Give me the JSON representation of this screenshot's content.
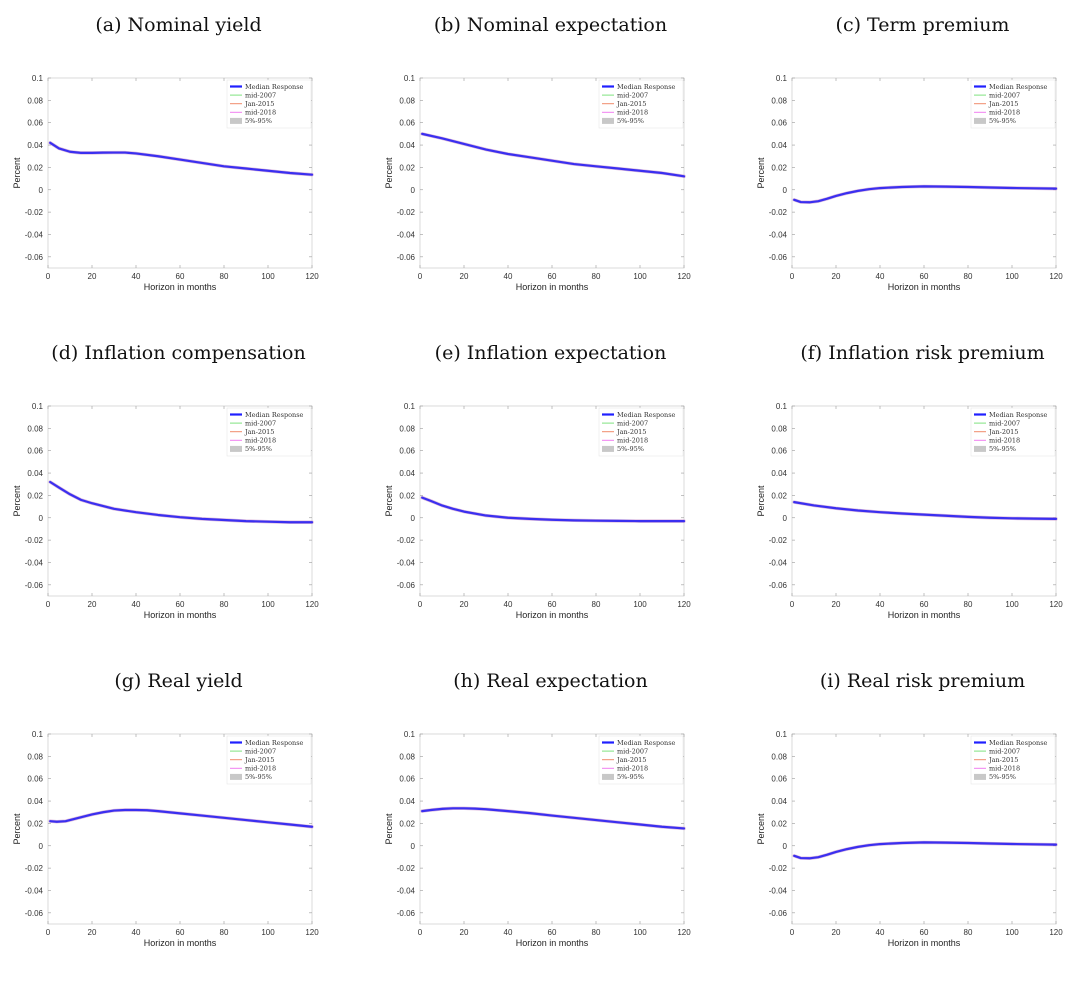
{
  "legend": {
    "entries": [
      {
        "label": "Median Response",
        "color": "#1f1fff",
        "kind": "line-thick"
      },
      {
        "label": "mid-2007",
        "color": "#7fe27f",
        "kind": "line"
      },
      {
        "label": "Jan-2015",
        "color": "#f08a6a",
        "kind": "line"
      },
      {
        "label": "mid-2018",
        "color": "#f07ef0",
        "kind": "line"
      },
      {
        "label": "5%-95%",
        "color": "#c8c8c8",
        "kind": "patch"
      }
    ]
  },
  "chart_data": [
    {
      "type": "line",
      "title": "(a) Nominal yield",
      "xlabel": "Horizon in months",
      "ylabel": "Percent",
      "xlim": [
        0,
        120
      ],
      "ylim": [
        -0.07,
        0.1
      ],
      "xticks": [
        "0",
        "20",
        "40",
        "60",
        "80",
        "100",
        "120"
      ],
      "yticks": [
        "-0.06",
        "-0.04",
        "-0.02",
        "0",
        "0.02",
        "0.04",
        "0.06",
        "0.08",
        "0.1"
      ],
      "series": [
        {
          "name": "Median Response",
          "x": [
            1,
            5,
            10,
            15,
            20,
            25,
            30,
            35,
            40,
            50,
            60,
            70,
            80,
            90,
            100,
            110,
            120
          ],
          "y": [
            0.042,
            0.037,
            0.034,
            0.033,
            0.033,
            0.0332,
            0.0333,
            0.0333,
            0.0325,
            0.03,
            0.027,
            0.024,
            0.021,
            0.019,
            0.017,
            0.015,
            0.0135
          ]
        }
      ]
    },
    {
      "type": "line",
      "title": "(b) Nominal expectation",
      "xlabel": "Horizon in months",
      "ylabel": "Percent",
      "xlim": [
        0,
        120
      ],
      "ylim": [
        -0.07,
        0.1
      ],
      "xticks": [
        "0",
        "20",
        "40",
        "60",
        "80",
        "100",
        "120"
      ],
      "yticks": [
        "-0.06",
        "-0.04",
        "-0.02",
        "0",
        "0.02",
        "0.04",
        "0.06",
        "0.08",
        "0.1"
      ],
      "series": [
        {
          "name": "Median Response",
          "x": [
            1,
            10,
            20,
            30,
            40,
            50,
            60,
            70,
            80,
            90,
            100,
            110,
            120
          ],
          "y": [
            0.05,
            0.046,
            0.041,
            0.036,
            0.032,
            0.029,
            0.026,
            0.023,
            0.021,
            0.019,
            0.017,
            0.015,
            0.012
          ]
        }
      ]
    },
    {
      "type": "line",
      "title": "(c) Term premium",
      "xlabel": "Horizon in months",
      "ylabel": "Percent",
      "xlim": [
        0,
        120
      ],
      "ylim": [
        -0.07,
        0.1
      ],
      "xticks": [
        "0",
        "20",
        "40",
        "60",
        "80",
        "100",
        "120"
      ],
      "yticks": [
        "-0.06",
        "-0.04",
        "-0.02",
        "0",
        "0.02",
        "0.04",
        "0.06",
        "0.08",
        "0.1"
      ],
      "series": [
        {
          "name": "Median Response",
          "x": [
            1,
            4,
            8,
            12,
            16,
            20,
            25,
            30,
            35,
            40,
            50,
            60,
            70,
            80,
            90,
            100,
            110,
            120
          ],
          "y": [
            -0.009,
            -0.011,
            -0.0112,
            -0.0102,
            -0.008,
            -0.0055,
            -0.003,
            -0.001,
            0.0005,
            0.0015,
            0.0025,
            0.003,
            0.0028,
            0.0025,
            0.002,
            0.0016,
            0.0013,
            0.001
          ]
        }
      ]
    },
    {
      "type": "line",
      "title": "(d) Inflation compensation",
      "xlabel": "Horizon in months",
      "ylabel": "Percent",
      "xlim": [
        0,
        120
      ],
      "ylim": [
        -0.07,
        0.1
      ],
      "xticks": [
        "0",
        "20",
        "40",
        "60",
        "80",
        "100",
        "120"
      ],
      "yticks": [
        "-0.06",
        "-0.04",
        "-0.02",
        "0",
        "0.02",
        "0.04",
        "0.06",
        "0.08",
        "0.1"
      ],
      "series": [
        {
          "name": "Median Response",
          "x": [
            1,
            5,
            10,
            15,
            20,
            30,
            40,
            50,
            60,
            70,
            80,
            90,
            100,
            110,
            120
          ],
          "y": [
            0.032,
            0.027,
            0.021,
            0.016,
            0.013,
            0.008,
            0.005,
            0.0025,
            0.0005,
            -0.001,
            -0.002,
            -0.003,
            -0.0035,
            -0.004,
            -0.004
          ]
        }
      ]
    },
    {
      "type": "line",
      "title": "(e) Inflation expectation",
      "xlabel": "Horizon in months",
      "ylabel": "Percent",
      "xlim": [
        0,
        120
      ],
      "ylim": [
        -0.07,
        0.1
      ],
      "xticks": [
        "0",
        "20",
        "40",
        "60",
        "80",
        "100",
        "120"
      ],
      "yticks": [
        "-0.06",
        "-0.04",
        "-0.02",
        "0",
        "0.02",
        "0.04",
        "0.06",
        "0.08",
        "0.1"
      ],
      "series": [
        {
          "name": "Median Response",
          "x": [
            1,
            5,
            10,
            15,
            20,
            30,
            40,
            50,
            60,
            70,
            80,
            90,
            100,
            110,
            120
          ],
          "y": [
            0.018,
            0.015,
            0.011,
            0.008,
            0.0055,
            0.002,
            0.0,
            -0.001,
            -0.0018,
            -0.0023,
            -0.0026,
            -0.0028,
            -0.003,
            -0.003,
            -0.003
          ]
        }
      ]
    },
    {
      "type": "line",
      "title": "(f) Inflation risk premium",
      "xlabel": "Horizon in months",
      "ylabel": "Percent",
      "xlim": [
        0,
        120
      ],
      "ylim": [
        -0.07,
        0.1
      ],
      "xticks": [
        "0",
        "20",
        "40",
        "60",
        "80",
        "100",
        "120"
      ],
      "yticks": [
        "-0.06",
        "-0.04",
        "-0.02",
        "0",
        "0.02",
        "0.04",
        "0.06",
        "0.08",
        "0.1"
      ],
      "series": [
        {
          "name": "Median Response",
          "x": [
            1,
            10,
            20,
            30,
            40,
            50,
            60,
            70,
            80,
            90,
            100,
            110,
            120
          ],
          "y": [
            0.014,
            0.011,
            0.0085,
            0.0065,
            0.005,
            0.0038,
            0.0028,
            0.0018,
            0.0008,
            0.0,
            -0.0005,
            -0.0008,
            -0.001
          ]
        }
      ]
    },
    {
      "type": "line",
      "title": "(g) Real yield",
      "xlabel": "Horizon in months",
      "ylabel": "Percent",
      "xlim": [
        0,
        120
      ],
      "ylim": [
        -0.07,
        0.1
      ],
      "xticks": [
        "0",
        "20",
        "40",
        "60",
        "80",
        "100",
        "120"
      ],
      "yticks": [
        "-0.06",
        "-0.04",
        "-0.02",
        "0",
        "0.02",
        "0.04",
        "0.06",
        "0.08",
        "0.1"
      ],
      "series": [
        {
          "name": "Median Response",
          "x": [
            1,
            4,
            8,
            12,
            16,
            20,
            25,
            30,
            35,
            40,
            45,
            50,
            60,
            70,
            80,
            90,
            100,
            110,
            120
          ],
          "y": [
            0.022,
            0.0215,
            0.022,
            0.024,
            0.026,
            0.028,
            0.03,
            0.0315,
            0.032,
            0.032,
            0.0318,
            0.031,
            0.029,
            0.027,
            0.025,
            0.023,
            0.021,
            0.019,
            0.017
          ]
        }
      ]
    },
    {
      "type": "line",
      "title": "(h) Real expectation",
      "xlabel": "Horizon in months",
      "ylabel": "Percent",
      "xlim": [
        0,
        120
      ],
      "ylim": [
        -0.07,
        0.1
      ],
      "xticks": [
        "0",
        "20",
        "40",
        "60",
        "80",
        "100",
        "120"
      ],
      "yticks": [
        "-0.06",
        "-0.04",
        "-0.02",
        "0",
        "0.02",
        "0.04",
        "0.06",
        "0.08",
        "0.1"
      ],
      "series": [
        {
          "name": "Median Response",
          "x": [
            1,
            5,
            10,
            15,
            20,
            25,
            30,
            40,
            50,
            60,
            70,
            80,
            90,
            100,
            110,
            120
          ],
          "y": [
            0.031,
            0.032,
            0.033,
            0.0335,
            0.0335,
            0.0332,
            0.0327,
            0.031,
            0.0292,
            0.027,
            0.025,
            0.023,
            0.021,
            0.019,
            0.017,
            0.0155
          ]
        }
      ]
    },
    {
      "type": "line",
      "title": "(i) Real risk premium",
      "xlabel": "Horizon in months",
      "ylabel": "Percent",
      "xlim": [
        0,
        120
      ],
      "ylim": [
        -0.07,
        0.1
      ],
      "xticks": [
        "0",
        "20",
        "40",
        "60",
        "80",
        "100",
        "120"
      ],
      "yticks": [
        "-0.06",
        "-0.04",
        "-0.02",
        "0",
        "0.02",
        "0.04",
        "0.06",
        "0.08",
        "0.1"
      ],
      "series": [
        {
          "name": "Median Response",
          "x": [
            1,
            4,
            8,
            12,
            16,
            20,
            25,
            30,
            35,
            40,
            50,
            60,
            70,
            80,
            90,
            100,
            110,
            120
          ],
          "y": [
            -0.009,
            -0.011,
            -0.0112,
            -0.0102,
            -0.008,
            -0.0055,
            -0.003,
            -0.001,
            0.0005,
            0.0015,
            0.0025,
            0.003,
            0.0028,
            0.0025,
            0.002,
            0.0016,
            0.0013,
            0.001
          ]
        }
      ]
    }
  ]
}
